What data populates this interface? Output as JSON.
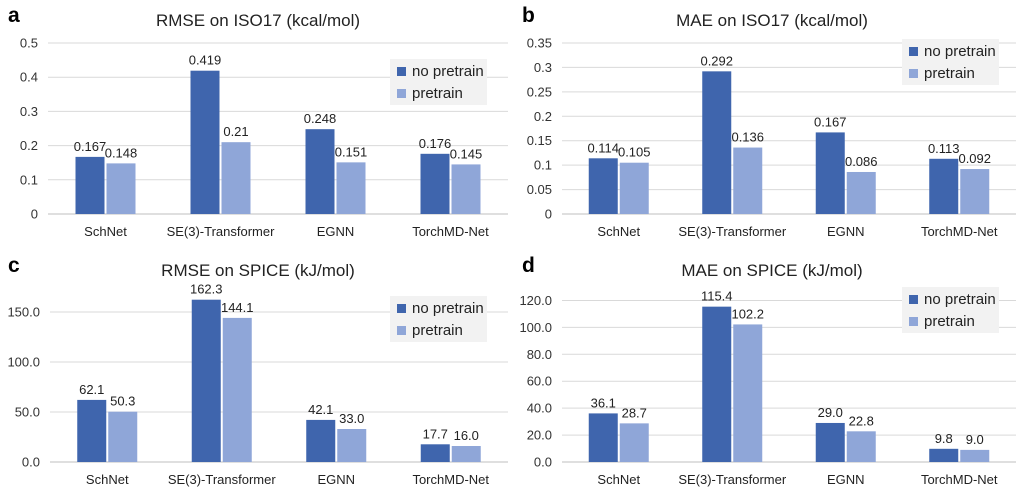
{
  "chart_data": [
    {
      "panel": "a",
      "type": "bar",
      "title": "RMSE on ISO17 (kcal/mol)",
      "categories": [
        "SchNet",
        "SE(3)-Transformer",
        "EGNN",
        "TorchMD-Net"
      ],
      "series": [
        {
          "name": "no pretrain",
          "values": [
            0.167,
            0.419,
            0.248,
            0.176
          ],
          "labels": [
            "0.167",
            "0.419",
            "0.248",
            "0.176"
          ]
        },
        {
          "name": "pretrain",
          "values": [
            0.148,
            0.21,
            0.151,
            0.145
          ],
          "labels": [
            "0.148",
            "0.21",
            "0.151",
            "0.145"
          ]
        }
      ],
      "yticks": [
        "0",
        "0.1",
        "0.2",
        "0.3",
        "0.4",
        "0.5"
      ],
      "ylim": [
        0,
        0.5
      ],
      "grid": true,
      "legend_position": "top-right"
    },
    {
      "panel": "b",
      "type": "bar",
      "title": "MAE on ISO17 (kcal/mol)",
      "categories": [
        "SchNet",
        "SE(3)-Transformer",
        "EGNN",
        "TorchMD-Net"
      ],
      "series": [
        {
          "name": "no pretrain",
          "values": [
            0.114,
            0.292,
            0.167,
            0.113
          ],
          "labels": [
            "0.114",
            "0.292",
            "0.167",
            "0.113"
          ]
        },
        {
          "name": "pretrain",
          "values": [
            0.105,
            0.136,
            0.086,
            0.092
          ],
          "labels": [
            "0.105",
            "0.136",
            "0.086",
            "0.092"
          ]
        }
      ],
      "yticks": [
        "0",
        "0.05",
        "0.1",
        "0.15",
        "0.2",
        "0.25",
        "0.3",
        "0.35"
      ],
      "ylim": [
        0,
        0.35
      ],
      "grid": true,
      "legend_position": "top-right"
    },
    {
      "panel": "c",
      "type": "bar",
      "title": "RMSE on SPICE (kJ/mol)",
      "categories": [
        "SchNet",
        "SE(3)-Transformer",
        "EGNN",
        "TorchMD-Net"
      ],
      "series": [
        {
          "name": "no pretrain",
          "values": [
            62.1,
            162.3,
            42.1,
            17.7
          ],
          "labels": [
            "62.1",
            "162.3",
            "42.1",
            "17.7"
          ]
        },
        {
          "name": "pretrain",
          "values": [
            50.3,
            144.1,
            33.0,
            16.0
          ],
          "labels": [
            "50.3",
            "144.1",
            "33.0",
            "16.0"
          ]
        }
      ],
      "yticks": [
        "0.0",
        "50.0",
        "100.0",
        "150.0"
      ],
      "ylim": [
        0,
        175
      ],
      "grid": true,
      "legend_position": "top-right"
    },
    {
      "panel": "d",
      "type": "bar",
      "title": "MAE on SPICE (kJ/mol)",
      "categories": [
        "SchNet",
        "SE(3)-Transformer",
        "EGNN",
        "TorchMD-Net"
      ],
      "series": [
        {
          "name": "no pretrain",
          "values": [
            36.1,
            115.4,
            29.0,
            9.8
          ],
          "labels": [
            "36.1",
            "115.4",
            "29.0",
            "9.8"
          ]
        },
        {
          "name": "pretrain",
          "values": [
            28.7,
            102.2,
            22.8,
            9.0
          ],
          "labels": [
            "28.7",
            "102.2",
            "22.8",
            "9.0"
          ]
        }
      ],
      "yticks": [
        "0.0",
        "20.0",
        "40.0",
        "60.0",
        "80.0",
        "100.0",
        "120.0"
      ],
      "ylim": [
        0,
        130
      ],
      "grid": true,
      "legend_position": "top-right"
    }
  ],
  "colors": {
    "no_pretrain": "#3f65ad",
    "pretrain": "#8fa6d8",
    "legend_bg": "#f2f2f2"
  }
}
